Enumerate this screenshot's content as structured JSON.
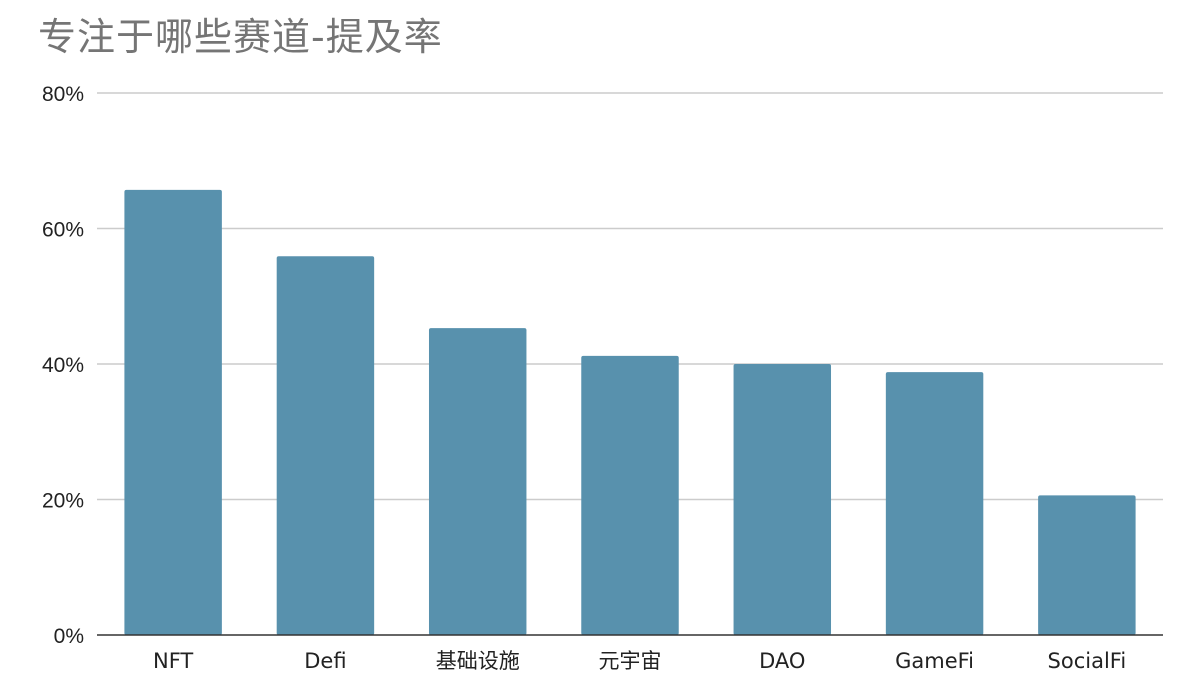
{
  "chart_data": {
    "type": "bar",
    "title": "专注于哪些赛道-提及率",
    "xlabel": "",
    "ylabel": "",
    "categories": [
      "NFT",
      "Defi",
      "基础设施",
      "元宇宙",
      "DAO",
      "GameFi",
      "SocialFi"
    ],
    "values": [
      65.7,
      55.9,
      45.3,
      41.2,
      40.0,
      38.8,
      20.6
    ],
    "ylim": [
      0,
      80
    ],
    "yticks": [
      0,
      20,
      40,
      60,
      80
    ],
    "ytick_labels": [
      "0%",
      "20%",
      "40%",
      "60%",
      "80%"
    ],
    "grid": true,
    "legend": "none",
    "colors": {
      "bar": "#5891AD",
      "grid": "#CCCCCC",
      "axis": "#333333",
      "title": "#757575"
    }
  }
}
